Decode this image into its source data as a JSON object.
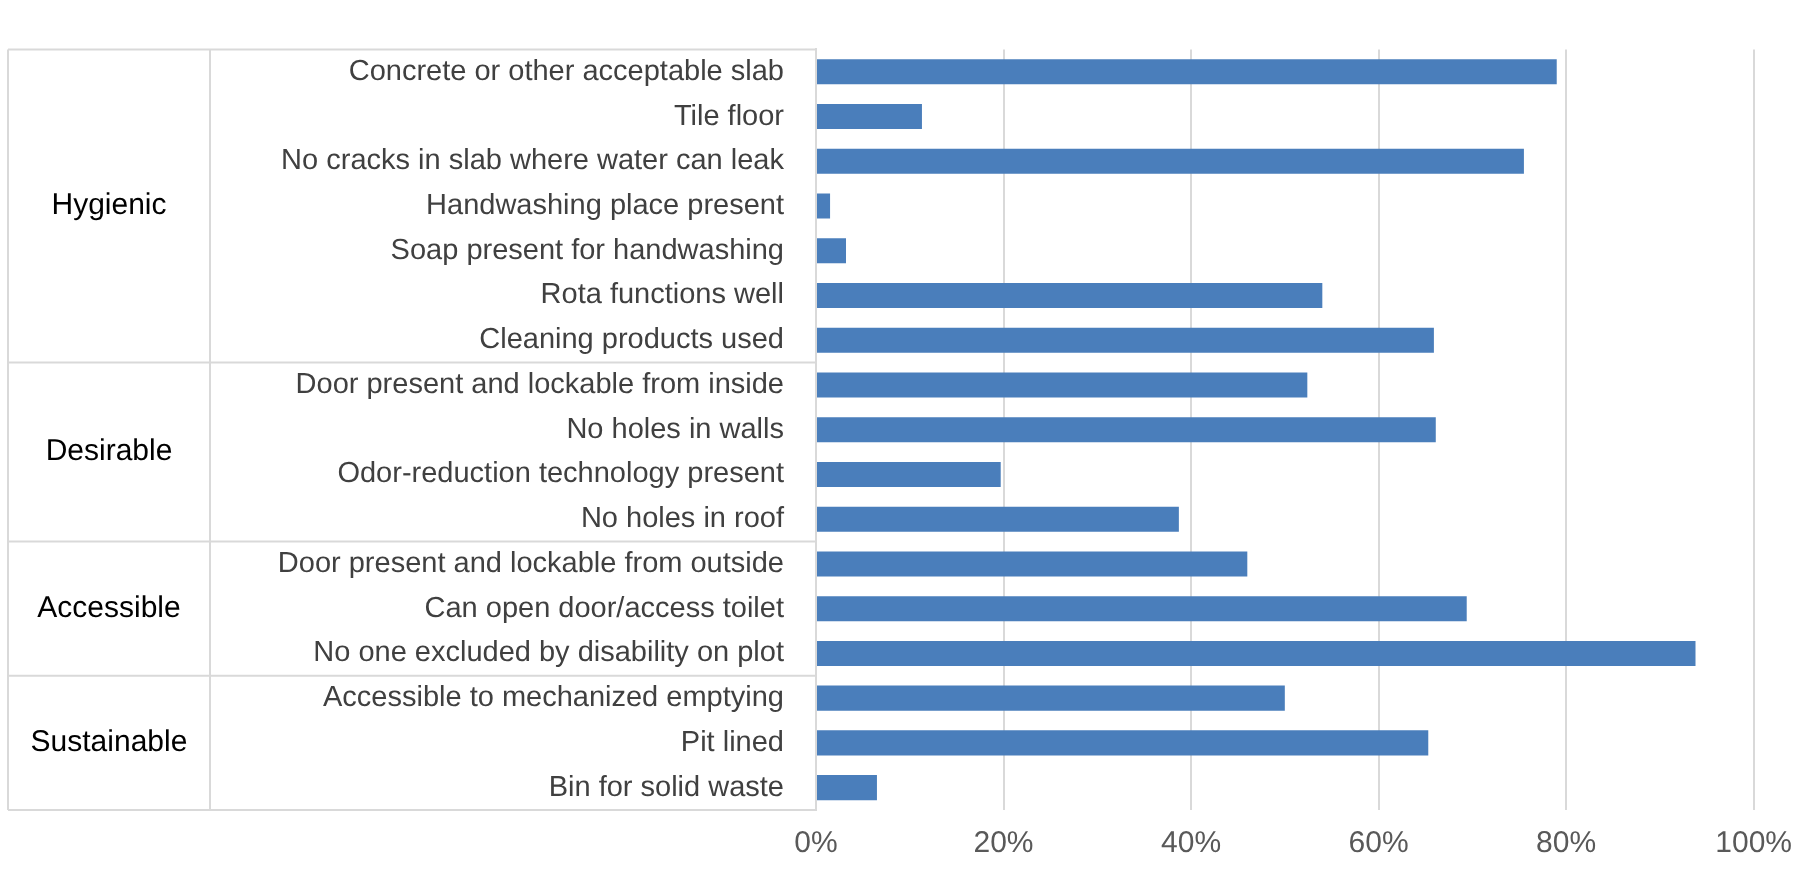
{
  "chart_data": {
    "type": "bar",
    "orientation": "horizontal",
    "categories": [
      "Concrete or other acceptable slab",
      "Tile floor",
      "No cracks in slab where water can leak",
      "Handwashing place present",
      "Soap present for handwashing",
      "Rota functions well",
      "Cleaning products used",
      "Door present and lockable from inside",
      "No holes in walls",
      "Odor-reduction technology present",
      "No holes in roof",
      "Door present and lockable from outside",
      "Can open door/access toilet",
      "No one excluded by disability on plot",
      "Accessible to mechanized emptying",
      "Pit lined",
      "Bin for solid waste"
    ],
    "values": [
      79.0,
      11.3,
      75.5,
      1.5,
      3.2,
      54.0,
      65.9,
      52.4,
      66.1,
      19.7,
      38.7,
      46.0,
      69.4,
      93.8,
      50.0,
      65.3,
      6.5
    ],
    "color": "#4a7ebb",
    "xlim": [
      0,
      100
    ],
    "xticks": [
      {
        "value": 0,
        "label": "0%"
      },
      {
        "value": 20,
        "label": "20%"
      },
      {
        "value": 40,
        "label": "40%"
      },
      {
        "value": 60,
        "label": "60%"
      },
      {
        "value": 80,
        "label": "80%"
      },
      {
        "value": 100,
        "label": "100%"
      }
    ],
    "grid": "x",
    "legend": false,
    "annotations": [
      "Hygienic",
      "Desirable",
      "Accessible",
      "Sustainable"
    ]
  }
}
